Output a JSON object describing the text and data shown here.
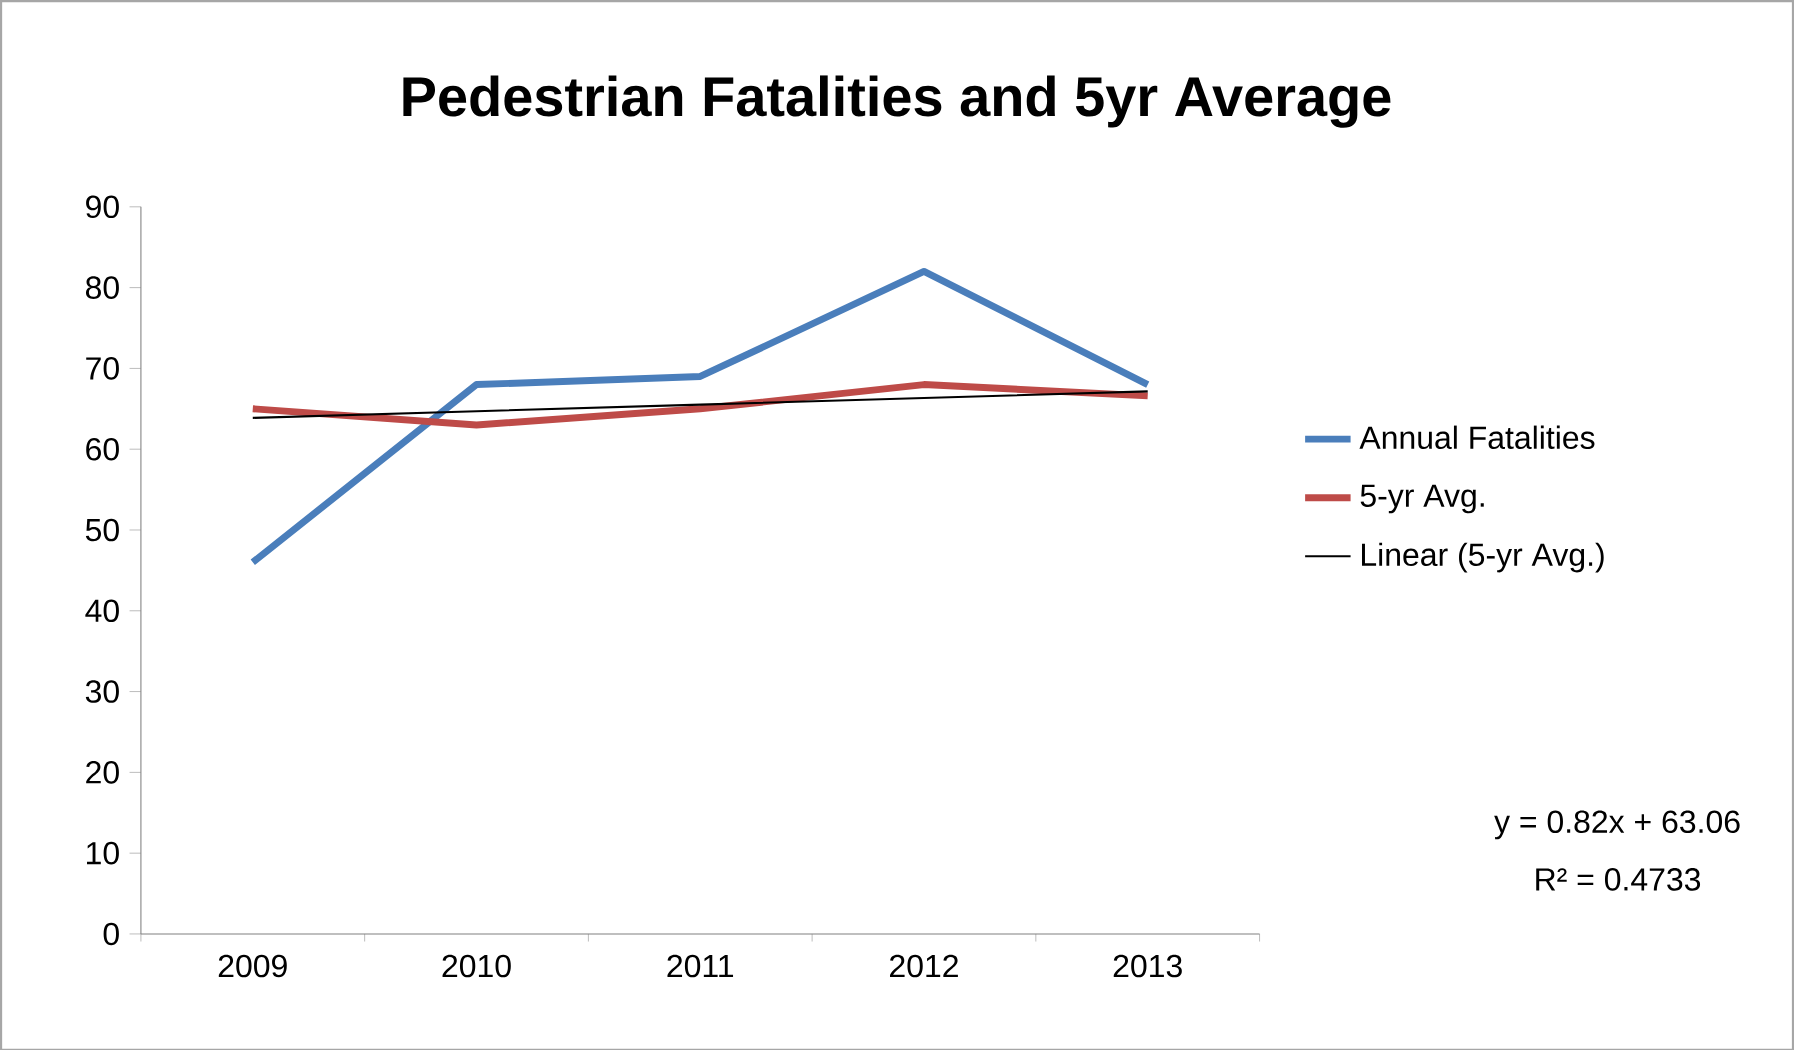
{
  "chart_data": {
    "type": "line",
    "title": "Pedestrian Fatalities and 5yr Average",
    "categories": [
      "2009",
      "2010",
      "2011",
      "2012",
      "2013"
    ],
    "series": [
      {
        "name": "Annual Fatalities",
        "color": "#4a7ebb",
        "values": [
          46,
          68,
          69,
          82,
          68
        ]
      },
      {
        "name": "5-yr Avg.",
        "color": "#be4b48",
        "values": [
          65,
          63,
          65,
          68,
          66.6
        ]
      },
      {
        "name": "Linear (5-yr Avg.)",
        "color": "#000000",
        "type": "line",
        "values": [
          63.88,
          64.7,
          65.52,
          66.34,
          67.16
        ]
      }
    ],
    "ylim": [
      0,
      90
    ],
    "yticks": [
      0,
      10,
      20,
      30,
      40,
      50,
      60,
      70,
      80,
      90
    ],
    "grid": false,
    "legend": "right",
    "marker": "none",
    "line_style": "solid",
    "annotations": [
      "y = 0.82x + 63.06",
      "R² = 0.4733"
    ]
  }
}
